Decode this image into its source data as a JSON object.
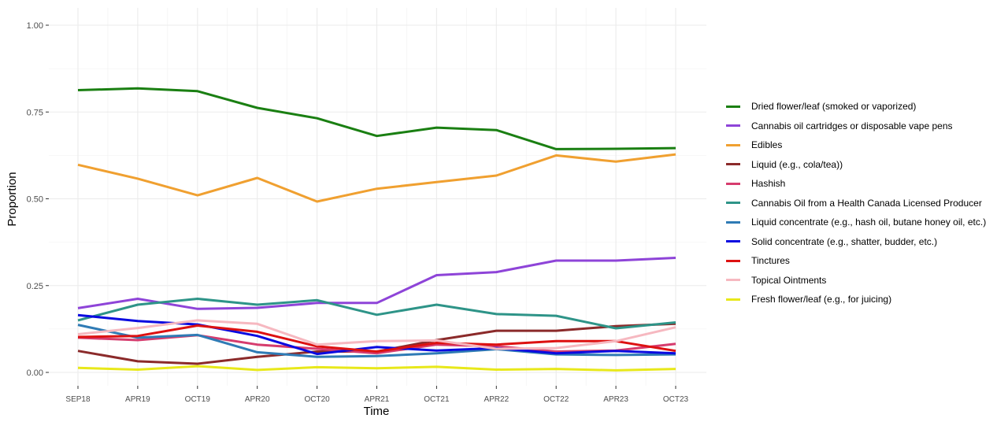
{
  "chart_data": {
    "type": "line",
    "title": "",
    "xlabel": "Time",
    "ylabel": "Proportion",
    "categories": [
      "SEP18",
      "APR19",
      "OCT19",
      "APR20",
      "OCT20",
      "APR21",
      "OCT21",
      "APR22",
      "OCT22",
      "APR23",
      "OCT23"
    ],
    "ylim": [
      0,
      1
    ],
    "yticks": [
      "0.00",
      "0.25",
      "0.50",
      "0.75",
      "1.00"
    ],
    "ytick_values": [
      0,
      0.25,
      0.5,
      0.75,
      1.0
    ],
    "grid": true,
    "legend_position": "right",
    "series": [
      {
        "name": "Dried flower/leaf (smoked or vaporized)",
        "color": "#1a7f12",
        "values": [
          0.813,
          0.818,
          0.81,
          0.762,
          0.732,
          0.681,
          0.705,
          0.698,
          0.643,
          0.644,
          0.646
        ]
      },
      {
        "name": "Cannabis oil cartridges or disposable vape pens",
        "color": "#8e44d8",
        "values": [
          0.185,
          0.212,
          0.183,
          0.186,
          0.2,
          0.2,
          0.28,
          0.289,
          0.322,
          0.322,
          0.33
        ]
      },
      {
        "name": "Edibles",
        "color": "#f0a030",
        "values": [
          0.598,
          0.558,
          0.51,
          0.56,
          0.492,
          0.529,
          0.548,
          0.567,
          0.625,
          0.607,
          0.628
        ]
      },
      {
        "name": "Liquid (e.g., cola/tea))",
        "color": "#8b2a2a",
        "values": [
          0.062,
          0.032,
          0.025,
          0.045,
          0.06,
          0.06,
          0.093,
          0.12,
          0.12,
          0.133,
          0.14
        ]
      },
      {
        "name": "Hashish",
        "color": "#d63c6e",
        "values": [
          0.1,
          0.093,
          0.107,
          0.08,
          0.068,
          0.055,
          0.08,
          0.075,
          0.06,
          0.063,
          0.082
        ]
      },
      {
        "name": "Cannabis Oil from a Health Canada Licensed Producer",
        "color": "#2e9488",
        "values": [
          0.15,
          0.195,
          0.212,
          0.195,
          0.208,
          0.166,
          0.195,
          0.168,
          0.163,
          0.127,
          0.144
        ]
      },
      {
        "name": "Liquid concentrate (e.g., hash oil, butane honey oil, etc.)",
        "color": "#2f7bb5",
        "values": [
          0.137,
          0.1,
          0.108,
          0.058,
          0.045,
          0.047,
          0.055,
          0.067,
          0.052,
          0.05,
          0.052
        ]
      },
      {
        "name": "Solid concentrate (e.g., shatter, budder, etc.)",
        "color": "#0a0ae0",
        "values": [
          0.165,
          0.148,
          0.138,
          0.105,
          0.053,
          0.073,
          0.063,
          0.07,
          0.055,
          0.062,
          0.055
        ]
      },
      {
        "name": "Tinctures",
        "color": "#dd1111",
        "values": [
          0.102,
          0.105,
          0.135,
          0.117,
          0.075,
          0.06,
          0.085,
          0.08,
          0.09,
          0.09,
          0.062
        ]
      },
      {
        "name": "Topical Ointments",
        "color": "#f6b8c0",
        "values": [
          0.11,
          0.128,
          0.15,
          0.14,
          0.08,
          0.09,
          0.092,
          0.068,
          0.07,
          0.09,
          0.13
        ]
      },
      {
        "name": "Fresh flower/leaf (e.g., for juicing)",
        "color": "#e8e81a",
        "values": [
          0.013,
          0.008,
          0.018,
          0.007,
          0.015,
          0.012,
          0.016,
          0.008,
          0.01,
          0.006,
          0.01
        ]
      }
    ]
  }
}
